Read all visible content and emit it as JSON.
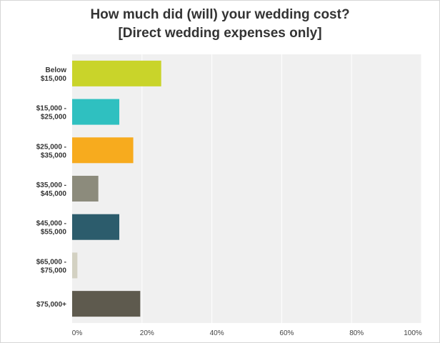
{
  "chart_data": {
    "type": "bar",
    "orientation": "horizontal",
    "title_line1": "How much did (will) your wedding cost?",
    "title_line2": "[Direct wedding expenses only]",
    "categories": [
      [
        "Below",
        "$15,000"
      ],
      [
        "$15,000 -",
        "$25,000"
      ],
      [
        "$25,000 -",
        "$35,000"
      ],
      [
        "$35,000 -",
        "$45,000"
      ],
      [
        "$45,000 -",
        "$55,000"
      ],
      [
        "$65,000 -",
        "$75,000"
      ],
      [
        "$75,000+"
      ]
    ],
    "values": [
      25.5,
      13.5,
      17.5,
      7.5,
      13.5,
      1.5,
      19.5
    ],
    "colors": [
      "#c9d42a",
      "#2fc0c0",
      "#f7ab1e",
      "#8c8b7c",
      "#2c5c6c",
      "#d3d1c2",
      "#5e5a4e"
    ],
    "xticks": [
      "0%",
      "20%",
      "40%",
      "60%",
      "80%",
      "100%"
    ],
    "xlim": [
      0,
      100
    ],
    "grid": true,
    "legend": "none"
  }
}
